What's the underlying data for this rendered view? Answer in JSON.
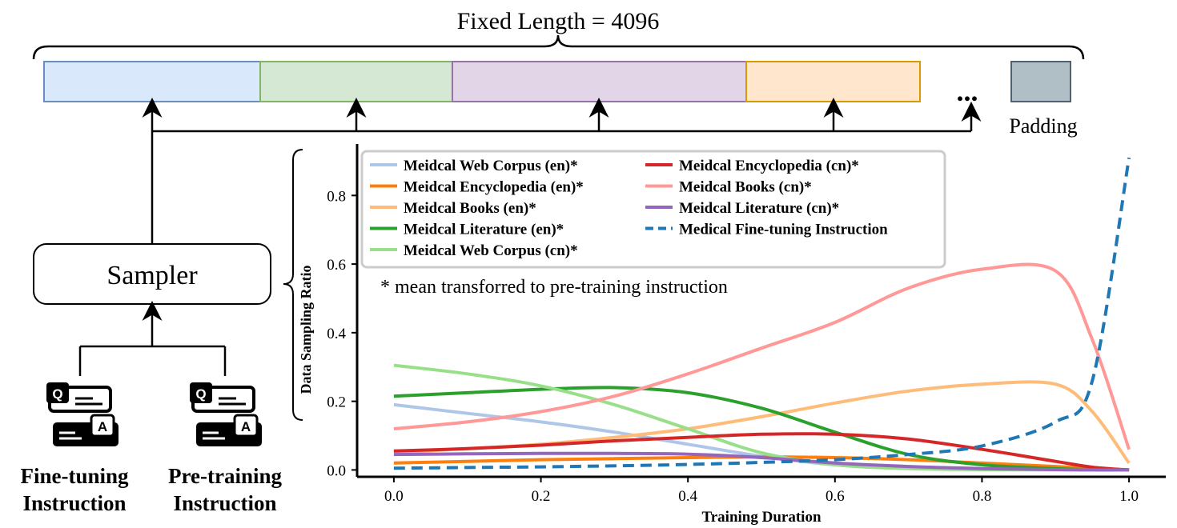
{
  "header": {
    "title": "Fixed Length = 4096",
    "ellipsis": "...",
    "padding_label": "Padding"
  },
  "segments": [
    {
      "fill": "#dae8fc",
      "stroke": "#6c8ebf"
    },
    {
      "fill": "#d5e8d4",
      "stroke": "#82b366"
    },
    {
      "fill": "#e1d5e7",
      "stroke": "#9673a6"
    },
    {
      "fill": "#ffe6cc",
      "stroke": "#d79b00"
    }
  ],
  "padding_box": {
    "fill": "#b0bec5",
    "stroke": "#4f6070"
  },
  "sampler": {
    "label": "Sampler"
  },
  "sources": [
    {
      "line1": "Fine-tuning",
      "line2": "Instruction",
      "icon": "qa-card-icon",
      "q": "Q",
      "a": "A"
    },
    {
      "line1": "Pre-training",
      "line2": "Instruction",
      "icon": "qa-card-icon",
      "q": "Q",
      "a": "A"
    }
  ],
  "chart_data": {
    "type": "line",
    "xlabel": "Training Duration",
    "ylabel": "Data Sampling Ratio",
    "xlim": [
      -0.05,
      1.05
    ],
    "ylim": [
      -0.02,
      0.95
    ],
    "xticks": [
      "0.0",
      "0.2",
      "0.4",
      "0.6",
      "0.8",
      "1.0"
    ],
    "yticks": [
      "0.0",
      "0.2",
      "0.4",
      "0.6",
      "0.8"
    ],
    "annotation": "* mean transforred to pre-training instruction",
    "legend_position": "top-left",
    "grid": false,
    "x": [
      0.0,
      0.1,
      0.2,
      0.3,
      0.4,
      0.5,
      0.6,
      0.7,
      0.8,
      0.9,
      0.95,
      1.0
    ],
    "series": [
      {
        "name": "Meidcal Web Corpus (en)*",
        "color": "#aec7e8",
        "dashed": false,
        "values": [
          0.19,
          0.165,
          0.14,
          0.11,
          0.075,
          0.04,
          0.015,
          0.005,
          0.002,
          0.001,
          0.0,
          0.0
        ]
      },
      {
        "name": "Meidcal Encyclopedia (en)*",
        "color": "#ff7f0e",
        "dashed": false,
        "values": [
          0.02,
          0.025,
          0.03,
          0.033,
          0.036,
          0.038,
          0.036,
          0.03,
          0.02,
          0.01,
          0.004,
          0.0
        ]
      },
      {
        "name": "Meidcal Books (en)*",
        "color": "#ffbb78",
        "dashed": false,
        "values": [
          0.05,
          0.062,
          0.075,
          0.095,
          0.12,
          0.155,
          0.195,
          0.23,
          0.25,
          0.25,
          0.17,
          0.02
        ]
      },
      {
        "name": "Meidcal Literature (en)*",
        "color": "#2ca02c",
        "dashed": false,
        "values": [
          0.215,
          0.225,
          0.235,
          0.24,
          0.225,
          0.18,
          0.11,
          0.045,
          0.015,
          0.004,
          0.001,
          0.0
        ]
      },
      {
        "name": "Meidcal Web Corpus (cn)*",
        "color": "#98df8a",
        "dashed": false,
        "values": [
          0.305,
          0.28,
          0.245,
          0.19,
          0.12,
          0.05,
          0.015,
          0.004,
          0.001,
          0.0,
          0.0,
          0.0
        ]
      },
      {
        "name": "Meidcal Encyclopedia (cn)*",
        "color": "#d62728",
        "dashed": false,
        "values": [
          0.055,
          0.062,
          0.072,
          0.085,
          0.095,
          0.104,
          0.104,
          0.09,
          0.06,
          0.025,
          0.008,
          0.0
        ]
      },
      {
        "name": "Meidcal Books (cn)*",
        "color": "#ff9896",
        "dashed": false,
        "values": [
          0.12,
          0.14,
          0.17,
          0.215,
          0.28,
          0.355,
          0.43,
          0.53,
          0.585,
          0.58,
          0.38,
          0.06
        ]
      },
      {
        "name": "Meidcal Literature (cn)*",
        "color": "#9467bd",
        "dashed": false,
        "values": [
          0.045,
          0.047,
          0.048,
          0.048,
          0.046,
          0.036,
          0.02,
          0.01,
          0.004,
          0.001,
          0.0,
          0.0
        ]
      },
      {
        "name": "Medical Fine-tuning Instruction",
        "color": "#1f77b4",
        "dashed": true,
        "values": [
          0.005,
          0.007,
          0.009,
          0.012,
          0.016,
          0.022,
          0.03,
          0.045,
          0.07,
          0.14,
          0.26,
          0.91
        ]
      }
    ]
  }
}
